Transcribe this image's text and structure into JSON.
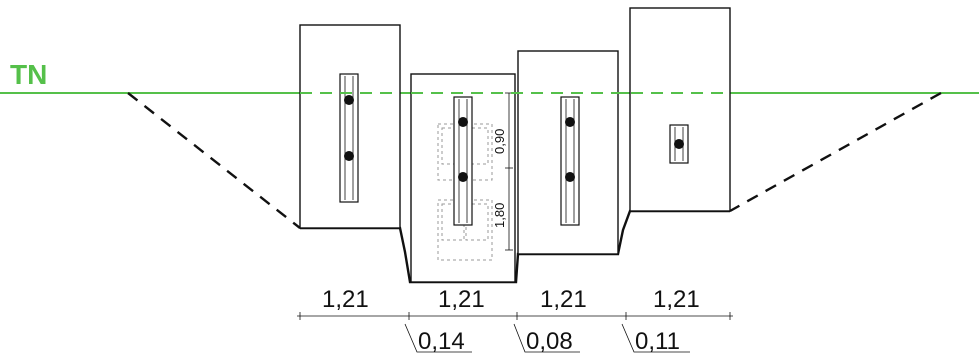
{
  "ground": {
    "label": "TN",
    "color": "#55c04a"
  },
  "colors": {
    "outline": "#111111",
    "ghost": "#9a9a9a"
  },
  "widths": [
    {
      "label": "1,21"
    },
    {
      "label": "1,21"
    },
    {
      "label": "1,21"
    },
    {
      "label": "1,21"
    }
  ],
  "offsets": [
    {
      "label": "0,14"
    },
    {
      "label": "0,08"
    },
    {
      "label": "0,11"
    }
  ],
  "vertical_dims": {
    "top": "0,90",
    "bottom": "1,80"
  }
}
